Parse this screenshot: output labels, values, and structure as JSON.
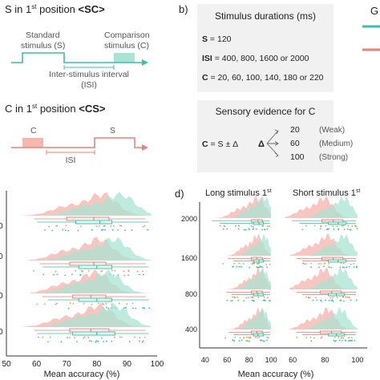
{
  "colors": {
    "teal": "#3cbfa5",
    "teal_fill": "#a9e3d3",
    "salmon": "#e8827a",
    "salmon_fill": "#f5b8b0",
    "orange": "#e89a4a",
    "axis": "#333333",
    "box_bg": "#f0f0f0"
  },
  "panel_a": {
    "sc_title_prefix": "S in 1",
    "sc_title_sup": "st",
    "sc_title_mid": " position ",
    "sc_title_code": "<SC>",
    "standard_label_1": "Standard",
    "standard_label_2": "stimulus (S)",
    "comparison_label_1": "Comparison",
    "comparison_label_2": "stimulus (C)",
    "isi_label_1": "Inter-stimulus interval",
    "isi_label_2": "(ISI)",
    "cs_title_prefix": "C in 1",
    "cs_title_sup": "st",
    "cs_title_mid": " position ",
    "cs_title_code": "<CS>",
    "cs_c_label": "C",
    "cs_s_label": "S",
    "cs_isi_label": "ISI"
  },
  "panel_b": {
    "label": "b)",
    "box1_title": "Stimulus durations (ms)",
    "s_key": "S",
    "s_val": " = 120",
    "isi_key": "ISI",
    "isi_val": " = 400, 800, 1600 or 2000",
    "c_key": "C",
    "c_val": " = 20, 60, 100, 140, 180 or 220",
    "box2_title": "Sensory evidence for C",
    "formula_key": "C",
    "formula_rest": " = S ± Δ",
    "delta": "Δ",
    "levels": [
      {
        "value": "20",
        "name": "(Weak)"
      },
      {
        "value": "60",
        "name": "(Medium)"
      },
      {
        "value": "100",
        "name": "(Strong)"
      }
    ],
    "legend_partial": "G"
  },
  "panel_c": {
    "y_ticks": [
      "0",
      "0",
      "0",
      "0"
    ],
    "x_ticks": [
      "50",
      "60",
      "70",
      "80",
      "90",
      "100"
    ],
    "xlabel": "Mean accuracy (%)"
  },
  "panel_d": {
    "label": "d)",
    "left_title_prefix": "Long stimulus 1",
    "left_title_sup": "st",
    "right_title_prefix": "Short stimulus 1",
    "right_title_sup": "st",
    "y_ticks": [
      "2000",
      "1600",
      "800",
      "400"
    ],
    "x_ticks_left": [
      "40",
      "60",
      "80",
      "100"
    ],
    "x_ticks_right": [
      "60",
      "80",
      "100"
    ],
    "xlabel": "Mean accuracy (%)"
  },
  "chart_data": [
    {
      "type": "raincloud",
      "panel": "c",
      "xlabel": "Mean accuracy (%)",
      "xlim": [
        50,
        100
      ],
      "x_ticks": [
        50,
        60,
        70,
        80,
        90,
        100
      ],
      "rows": [
        {
          "series": [
            {
              "color": "salmon",
              "range": [
                55,
                97
              ],
              "peak": 82,
              "q1": 70,
              "median": 79,
              "q3": 84
            },
            {
              "color": "teal",
              "range": [
                56,
                98
              ],
              "peak": 88,
              "q1": 73,
              "median": 81,
              "q3": 85
            }
          ]
        },
        {
          "series": [
            {
              "color": "salmon",
              "range": [
                57,
                97
              ],
              "peak": 81,
              "q1": 71,
              "median": 79,
              "q3": 83
            },
            {
              "color": "teal",
              "range": [
                58,
                98
              ],
              "peak": 86,
              "q1": 74,
              "median": 80,
              "q3": 85
            }
          ]
        },
        {
          "series": [
            {
              "color": "salmon",
              "range": [
                58,
                97
              ],
              "peak": 80,
              "q1": 72,
              "median": 78,
              "q3": 83
            },
            {
              "color": "teal",
              "range": [
                60,
                98
              ],
              "peak": 84,
              "q1": 74,
              "median": 80,
              "q3": 85
            }
          ]
        },
        {
          "series": [
            {
              "color": "salmon",
              "range": [
                55,
                97
              ],
              "peak": 81,
              "q1": 71,
              "median": 78,
              "q3": 84
            },
            {
              "color": "teal",
              "range": [
                56,
                98
              ],
              "peak": 86,
              "q1": 72,
              "median": 80,
              "q3": 86
            }
          ]
        }
      ]
    },
    {
      "type": "raincloud",
      "panel": "d-left",
      "title": "Long stimulus 1st",
      "xlim": [
        35,
        105
      ],
      "x_ticks": [
        40,
        60,
        80,
        100
      ],
      "y_ticks": [
        2000,
        1600,
        800,
        400
      ],
      "rows": [
        {
          "isi": 2000,
          "series": [
            {
              "color": "salmon",
              "range": [
                40,
                100
              ],
              "peak": 88,
              "q1": 82,
              "median": 88,
              "q3": 92
            },
            {
              "color": "teal",
              "range": [
                48,
                100
              ],
              "peak": 94,
              "q1": 84,
              "median": 89,
              "q3": 93
            }
          ]
        },
        {
          "isi": 1600,
          "series": [
            {
              "color": "salmon",
              "range": [
                56,
                100
              ],
              "peak": 88,
              "q1": 82,
              "median": 87,
              "q3": 92
            },
            {
              "color": "teal",
              "range": [
                62,
                100
              ],
              "peak": 94,
              "q1": 84,
              "median": 89,
              "q3": 93
            }
          ]
        },
        {
          "isi": 800,
          "series": [
            {
              "color": "salmon",
              "range": [
                55,
                100
              ],
              "peak": 90,
              "q1": 82,
              "median": 87,
              "q3": 92
            },
            {
              "color": "teal",
              "range": [
                60,
                100
              ],
              "peak": 93,
              "q1": 84,
              "median": 88,
              "q3": 93
            }
          ]
        },
        {
          "isi": 400,
          "series": [
            {
              "color": "salmon",
              "range": [
                57,
                100
              ],
              "peak": 90,
              "q1": 82,
              "median": 87,
              "q3": 92
            },
            {
              "color": "teal",
              "range": [
                62,
                100
              ],
              "peak": 93,
              "q1": 84,
              "median": 88,
              "q3": 93
            }
          ]
        }
      ]
    },
    {
      "type": "raincloud",
      "panel": "d-right",
      "title": "Short stimulus 1st",
      "xlim": [
        50,
        105
      ],
      "x_ticks": [
        60,
        80,
        100
      ],
      "y_ticks": [
        2000,
        1600,
        800,
        400
      ],
      "rows": [
        {
          "isi": 2000,
          "series": [
            {
              "color": "salmon",
              "range": [
                55,
                100
              ],
              "peak": 80,
              "q1": 78,
              "median": 85,
              "q3": 91
            },
            {
              "color": "teal",
              "range": [
                60,
                100
              ],
              "peak": 92,
              "q1": 82,
              "median": 88,
              "q3": 93
            }
          ]
        },
        {
          "isi": 1600,
          "series": [
            {
              "color": "salmon",
              "range": [
                58,
                100
              ],
              "peak": 82,
              "q1": 78,
              "median": 85,
              "q3": 91
            },
            {
              "color": "teal",
              "range": [
                62,
                100
              ],
              "peak": 92,
              "q1": 82,
              "median": 88,
              "q3": 93
            }
          ]
        },
        {
          "isi": 800,
          "series": [
            {
              "color": "salmon",
              "range": [
                58,
                100
              ],
              "peak": 80,
              "q1": 77,
              "median": 84,
              "q3": 90
            },
            {
              "color": "teal",
              "range": [
                62,
                100
              ],
              "peak": 91,
              "q1": 82,
              "median": 87,
              "q3": 92
            }
          ]
        },
        {
          "isi": 400,
          "series": [
            {
              "color": "salmon",
              "range": [
                58,
                100
              ],
              "peak": 82,
              "q1": 77,
              "median": 84,
              "q3": 90
            },
            {
              "color": "teal",
              "range": [
                62,
                100
              ],
              "peak": 90,
              "q1": 82,
              "median": 87,
              "q3": 92
            }
          ]
        }
      ]
    }
  ]
}
